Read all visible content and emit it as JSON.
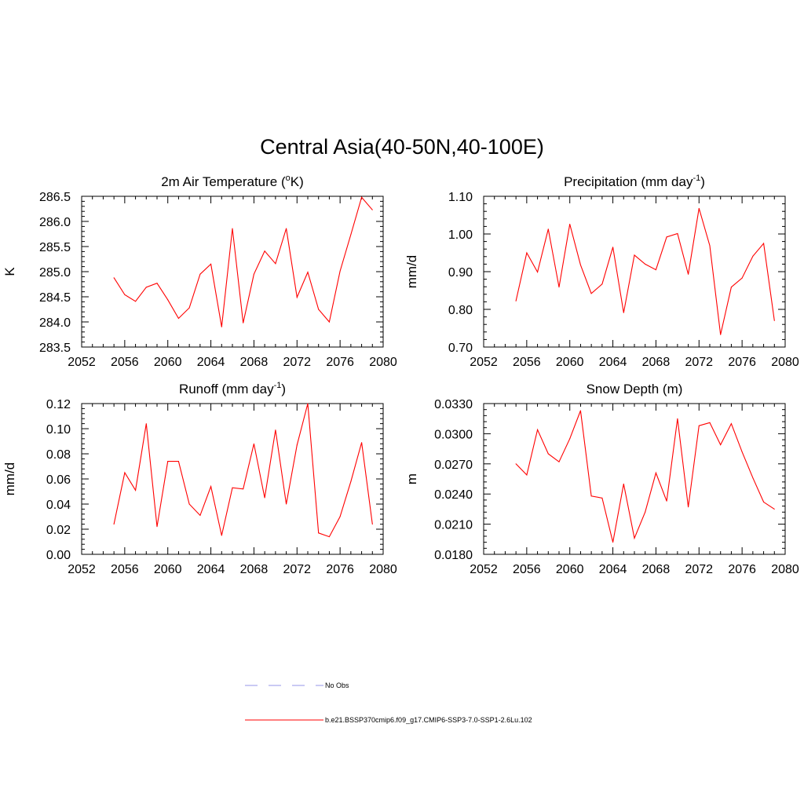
{
  "figure": {
    "title": "Central Asia(40-50N,40-100E)"
  },
  "legend": {
    "entries": [
      {
        "label": "No Obs",
        "color": "#aaaaee",
        "dashed": true
      },
      {
        "label": "b.e21.BSSP370cmip6.f09_g17.CMIP6-SSP3-7.0-SSP1-2.6Lu.102",
        "color": "#ff0000",
        "dashed": false
      }
    ]
  },
  "chart_data": [
    {
      "type": "line",
      "title": "2m Air Temperature (°K)",
      "title_main": "2m Air Temperature (",
      "title_sup": "o",
      "title_end": "K)",
      "ylabel": "K",
      "xlim": [
        2052,
        2080
      ],
      "ylim": [
        283.5,
        286.5
      ],
      "xticks": [
        2052,
        2056,
        2060,
        2064,
        2068,
        2072,
        2076,
        2080
      ],
      "yticks": [
        "283.5",
        "284.0",
        "284.5",
        "285.0",
        "285.5",
        "286.0",
        "286.5"
      ],
      "grid": false,
      "series": [
        {
          "color": "#ff0000",
          "x": [
            2055,
            2056,
            2057,
            2058,
            2059,
            2060,
            2061,
            2062,
            2063,
            2064,
            2065,
            2066,
            2067,
            2068,
            2069,
            2070,
            2071,
            2072,
            2073,
            2074,
            2075,
            2076,
            2077,
            2078,
            2079
          ],
          "values": [
            284.88,
            284.54,
            284.41,
            284.69,
            284.77,
            284.44,
            284.07,
            284.28,
            284.95,
            285.15,
            283.9,
            285.86,
            283.98,
            284.95,
            285.41,
            285.16,
            285.86,
            284.49,
            284.99,
            284.25,
            284.0,
            285.01,
            285.74,
            286.48,
            286.23
          ]
        }
      ]
    },
    {
      "type": "line",
      "title": "Precipitation (mm day-1)",
      "title_main": "Precipitation (mm day",
      "title_sup": "-1",
      "title_end": ")",
      "ylabel": "mm/d",
      "xlim": [
        2052,
        2080
      ],
      "ylim": [
        0.7,
        1.1
      ],
      "xticks": [
        2052,
        2056,
        2060,
        2064,
        2068,
        2072,
        2076,
        2080
      ],
      "yticks": [
        "0.70",
        "0.80",
        "0.90",
        "1.00",
        "1.10"
      ],
      "grid": false,
      "series": [
        {
          "color": "#ff0000",
          "x": [
            2055,
            2056,
            2057,
            2058,
            2059,
            2060,
            2061,
            2062,
            2063,
            2064,
            2065,
            2066,
            2067,
            2068,
            2069,
            2070,
            2071,
            2072,
            2073,
            2074,
            2075,
            2076,
            2077,
            2078,
            2079
          ],
          "values": [
            0.822,
            0.95,
            0.899,
            1.013,
            0.859,
            1.026,
            0.918,
            0.842,
            0.867,
            0.965,
            0.791,
            0.944,
            0.92,
            0.905,
            0.992,
            1.001,
            0.893,
            1.068,
            0.969,
            0.733,
            0.859,
            0.883,
            0.941,
            0.975,
            0.77
          ]
        }
      ]
    },
    {
      "type": "line",
      "title": "Runoff (mm day-1)",
      "title_main": "Runoff (mm day",
      "title_sup": "-1",
      "title_end": ")",
      "ylabel": "mm/d",
      "xlim": [
        2052,
        2080
      ],
      "ylim": [
        0.0,
        0.12
      ],
      "xticks": [
        2052,
        2056,
        2060,
        2064,
        2068,
        2072,
        2076,
        2080
      ],
      "yticks": [
        "0.00",
        "0.02",
        "0.04",
        "0.06",
        "0.08",
        "0.10",
        "0.12"
      ],
      "grid": false,
      "series": [
        {
          "color": "#ff0000",
          "x": [
            2055,
            2056,
            2057,
            2058,
            2059,
            2060,
            2061,
            2062,
            2063,
            2064,
            2065,
            2066,
            2067,
            2068,
            2069,
            2070,
            2071,
            2072,
            2073,
            2074,
            2075,
            2076,
            2077,
            2078,
            2079
          ],
          "values": [
            0.024,
            0.065,
            0.051,
            0.104,
            0.022,
            0.074,
            0.074,
            0.04,
            0.031,
            0.054,
            0.015,
            0.053,
            0.052,
            0.088,
            0.045,
            0.099,
            0.04,
            0.087,
            0.12,
            0.017,
            0.014,
            0.03,
            0.058,
            0.089,
            0.024
          ]
        }
      ]
    },
    {
      "type": "line",
      "title": "Snow Depth (m)",
      "title_main": "Snow Depth (m)",
      "title_sup": "",
      "title_end": "",
      "ylabel": "m",
      "xlim": [
        2052,
        2080
      ],
      "ylim": [
        0.018,
        0.033
      ],
      "xticks": [
        2052,
        2056,
        2060,
        2064,
        2068,
        2072,
        2076,
        2080
      ],
      "yticks": [
        "0.0180",
        "0.0210",
        "0.0240",
        "0.0270",
        "0.0300",
        "0.0330"
      ],
      "grid": false,
      "series": [
        {
          "color": "#ff0000",
          "x": [
            2055,
            2056,
            2057,
            2058,
            2059,
            2060,
            2061,
            2062,
            2063,
            2064,
            2065,
            2066,
            2067,
            2068,
            2069,
            2070,
            2071,
            2072,
            2073,
            2074,
            2075,
            2076,
            2077,
            2078,
            2079
          ],
          "values": [
            0.027,
            0.0259,
            0.0304,
            0.028,
            0.0272,
            0.0295,
            0.0323,
            0.0238,
            0.0236,
            0.0192,
            0.025,
            0.0196,
            0.0222,
            0.0261,
            0.0233,
            0.0315,
            0.0227,
            0.0308,
            0.0311,
            0.0289,
            0.031,
            0.0282,
            0.0256,
            0.0232,
            0.0225
          ]
        }
      ]
    }
  ]
}
